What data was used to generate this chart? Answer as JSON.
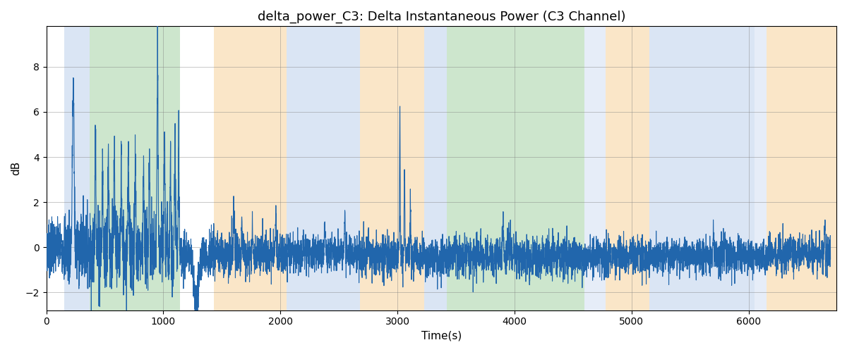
{
  "title": "delta_power_C3: Delta Instantaneous Power (C3 Channel)",
  "xlabel": "Time(s)",
  "ylabel": "dB",
  "xlim": [
    0,
    6750
  ],
  "ylim": [
    -2.8,
    9.8
  ],
  "line_color": "#2166ac",
  "line_width": 0.8,
  "background_bands": [
    {
      "xstart": 150,
      "xend": 370,
      "color": "#aec6e8",
      "alpha": 0.45
    },
    {
      "xstart": 370,
      "xend": 1140,
      "color": "#90c990",
      "alpha": 0.45
    },
    {
      "xstart": 1430,
      "xend": 2050,
      "color": "#f5c887",
      "alpha": 0.45
    },
    {
      "xstart": 2050,
      "xend": 2680,
      "color": "#aec6e8",
      "alpha": 0.45
    },
    {
      "xstart": 2680,
      "xend": 3230,
      "color": "#f5c887",
      "alpha": 0.45
    },
    {
      "xstart": 3230,
      "xend": 3420,
      "color": "#aec6e8",
      "alpha": 0.45
    },
    {
      "xstart": 3420,
      "xend": 4600,
      "color": "#90c990",
      "alpha": 0.45
    },
    {
      "xstart": 4600,
      "xend": 4780,
      "color": "#aec6e8",
      "alpha": 0.3
    },
    {
      "xstart": 4780,
      "xend": 5150,
      "color": "#f5c887",
      "alpha": 0.45
    },
    {
      "xstart": 5150,
      "xend": 6050,
      "color": "#aec6e8",
      "alpha": 0.45
    },
    {
      "xstart": 6050,
      "xend": 6150,
      "color": "#aec6e8",
      "alpha": 0.3
    },
    {
      "xstart": 6150,
      "xend": 6750,
      "color": "#f5c887",
      "alpha": 0.45
    }
  ],
  "title_fontsize": 13,
  "label_fontsize": 11,
  "tick_fontsize": 10
}
